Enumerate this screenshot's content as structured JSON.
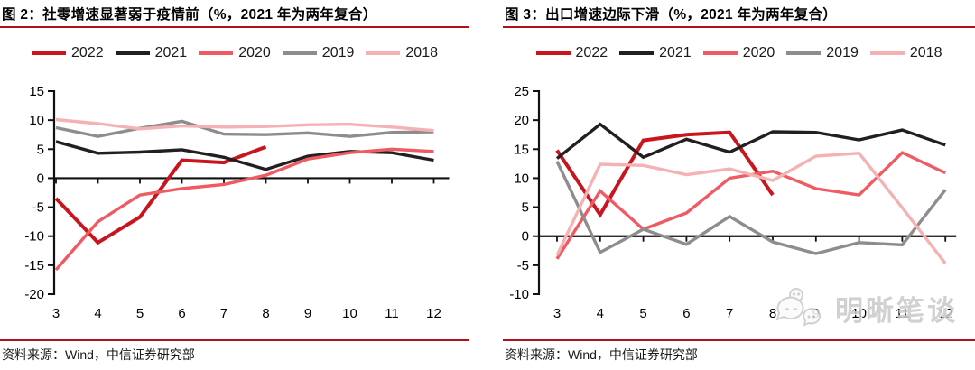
{
  "accent_color": "#B01116",
  "axis_color": "#111111",
  "panels": [
    {
      "title": "图 2：社零增速显著弱于疫情前（%，2021 年为两年复合）",
      "source": "资料来源：Wind，中信证券研究部"
    },
    {
      "title": "图 3：出口增速边际下滑（%，2021 年为两年复合）",
      "source": "资料来源：Wind，中信证券研究部"
    }
  ],
  "watermark": {
    "icon": "wechat-icon",
    "label": "明晰笔谈"
  },
  "chart_data": [
    {
      "type": "line",
      "title": "图 2：社零增速显著弱于疫情前（%，2021 年为两年复合）",
      "x": [
        3,
        4,
        5,
        6,
        7,
        8,
        9,
        10,
        11,
        12
      ],
      "xlabel": "",
      "ylabel": "",
      "ylim": [
        -20,
        15
      ],
      "ytick_step": 5,
      "grid": false,
      "legend_position": "top",
      "series": [
        {
          "name": "2022",
          "color": "#C9151E",
          "values": [
            -3.5,
            -11.1,
            -6.7,
            3.1,
            2.7,
            5.4
          ]
        },
        {
          "name": "2021",
          "color": "#231F20",
          "values": [
            6.3,
            4.3,
            4.5,
            4.9,
            3.6,
            1.5,
            3.8,
            4.6,
            4.4,
            3.1
          ]
        },
        {
          "name": "2020",
          "color": "#F05A63",
          "values": [
            -15.8,
            -7.5,
            -2.9,
            -1.8,
            -1.1,
            0.5,
            3.3,
            4.4,
            5.0,
            4.6
          ]
        },
        {
          "name": "2019",
          "color": "#8D8D8D",
          "values": [
            8.7,
            7.2,
            8.6,
            9.8,
            7.6,
            7.5,
            7.8,
            7.2,
            7.9,
            8.0
          ]
        },
        {
          "name": "2018",
          "color": "#F5B2B5",
          "values": [
            10.1,
            9.4,
            8.5,
            9.0,
            8.8,
            8.9,
            9.2,
            9.3,
            8.8,
            8.2
          ]
        }
      ]
    },
    {
      "type": "line",
      "title": "图 3：出口增速边际下滑（%，2021 年为两年复合）",
      "x": [
        3,
        4,
        5,
        6,
        7,
        8,
        9,
        10,
        11,
        12
      ],
      "xlabel": "",
      "ylabel": "",
      "ylim": [
        -10,
        25
      ],
      "ytick_step": 5,
      "grid": false,
      "legend_position": "top",
      "series": [
        {
          "name": "2022",
          "color": "#C9151E",
          "values": [
            14.8,
            3.7,
            16.5,
            17.5,
            17.9,
            7.1
          ]
        },
        {
          "name": "2021",
          "color": "#231F20",
          "values": [
            13.4,
            19.3,
            13.6,
            16.7,
            14.5,
            18.0,
            17.9,
            16.6,
            18.3,
            15.7
          ]
        },
        {
          "name": "2020",
          "color": "#F05A63",
          "values": [
            -3.9,
            7.8,
            1.2,
            4.0,
            10.0,
            11.2,
            8.2,
            7.1,
            14.4,
            10.9
          ]
        },
        {
          "name": "2019",
          "color": "#8D8D8D",
          "values": [
            12.9,
            -2.8,
            1.2,
            -1.4,
            3.4,
            -1.0,
            -3.0,
            -1.1,
            -1.5,
            8.0
          ]
        },
        {
          "name": "2018",
          "color": "#F5B2B5",
          "values": [
            -3.3,
            12.4,
            12.2,
            10.6,
            11.6,
            9.6,
            13.8,
            14.3,
            4.9,
            -4.7
          ]
        }
      ]
    }
  ]
}
